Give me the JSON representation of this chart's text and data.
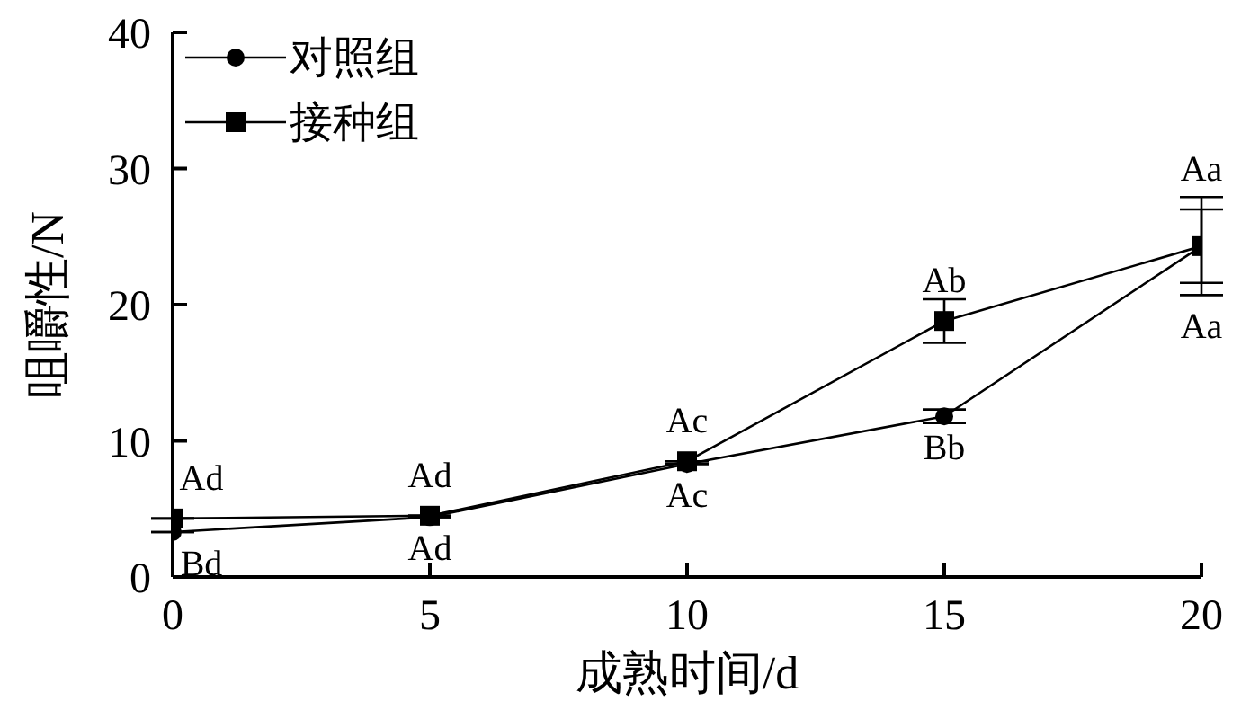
{
  "chart_data": {
    "type": "line",
    "xlabel": "成熟时间/d",
    "ylabel": "咀嚼性/N",
    "x": [
      0,
      5,
      10,
      15,
      20
    ],
    "series": [
      {
        "name": "对照组",
        "color": "#000000",
        "marker": "circle",
        "values": [
          3.3,
          4.4,
          8.3,
          11.8,
          24.3
        ],
        "errors": [
          null,
          null,
          null,
          0.5,
          3.6
        ]
      },
      {
        "name": "接种组",
        "color": "#000000",
        "marker": "square",
        "values": [
          4.3,
          4.5,
          8.5,
          18.8,
          24.3
        ],
        "errors": [
          null,
          null,
          null,
          1.6,
          2.7
        ]
      }
    ],
    "xlim": [
      0,
      20
    ],
    "xticks": [
      0,
      5,
      10,
      15,
      20
    ],
    "ylim": [
      0,
      40
    ],
    "yticks": [
      0,
      10,
      20,
      30,
      40
    ],
    "grid": false,
    "legend": "top left",
    "line_style": "solid",
    "annotations": [
      {
        "text": "Ad",
        "x": 0,
        "y": 4.3
      },
      {
        "text": "Bd",
        "x": 0,
        "y": 3.3
      },
      {
        "text": "Ad",
        "x": 5,
        "y": 4.5
      },
      {
        "text": "Ad",
        "x": 5,
        "y": 4.4
      },
      {
        "text": "Ac",
        "x": 10,
        "y": 8.5
      },
      {
        "text": "Ac",
        "x": 10,
        "y": 8.3
      },
      {
        "text": "Ab",
        "x": 15,
        "y": 18.8
      },
      {
        "text": "Bb",
        "x": 15,
        "y": 11.8
      },
      {
        "text": "Aa",
        "x": 20,
        "y": 27
      },
      {
        "text": "Aa",
        "x": 20,
        "y": 20.7
      }
    ]
  }
}
